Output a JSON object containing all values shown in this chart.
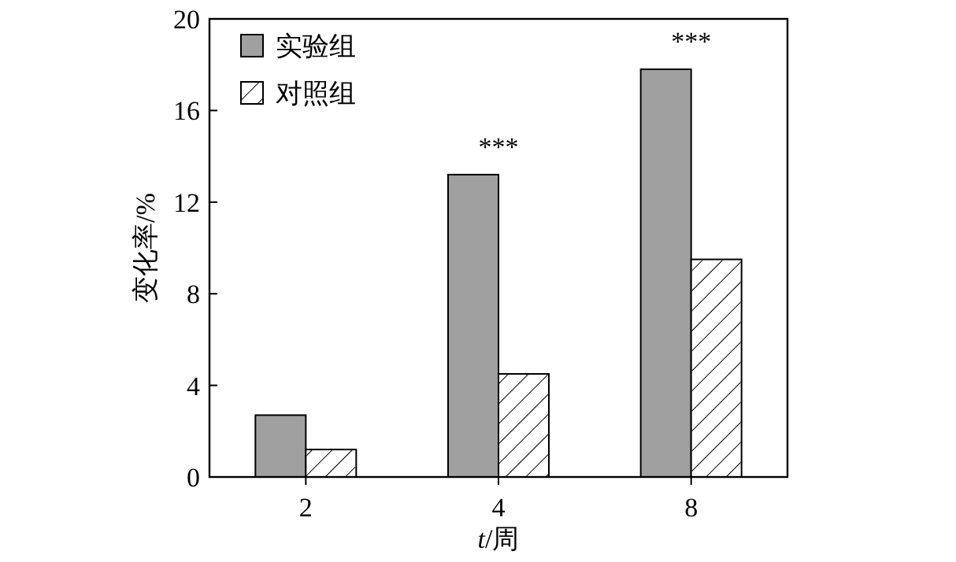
{
  "chart_data": {
    "type": "bar",
    "xlabel": "*t*/周",
    "ylabel": "变化率/%",
    "categories": [
      "2",
      "4",
      "8"
    ],
    "series": [
      {
        "name": "实验组",
        "color": "#a0a0a0",
        "values": [
          2.7,
          13.2,
          17.8
        ]
      },
      {
        "name": "对照组",
        "color": "#ffffff",
        "values": [
          1.2,
          4.5,
          9.5
        ]
      }
    ],
    "ylim": [
      0,
      20
    ],
    "yticks": [
      0,
      4,
      8,
      12,
      16,
      20
    ],
    "legend": "top left",
    "grid": false,
    "annotations": [
      "***",
      "***"
    ]
  }
}
